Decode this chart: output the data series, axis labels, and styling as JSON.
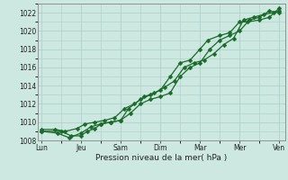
{
  "xlabel": "Pression niveau de la mer( hPa )",
  "bg_color": "#cce8e0",
  "grid_color": "#aacec6",
  "line_color": "#1a6b2a",
  "ylim": [
    1008,
    1023
  ],
  "yticks": [
    1008,
    1010,
    1012,
    1014,
    1016,
    1018,
    1020,
    1022
  ],
  "xtick_labels": [
    "Lun",
    "Jeu",
    "Sam",
    "Dim",
    "Mar",
    "Mer",
    "Ven"
  ],
  "xtick_positions": [
    0,
    1,
    2,
    3,
    4,
    5,
    6
  ],
  "xlim": [
    -0.1,
    6.15
  ],
  "series": [
    {
      "x": [
        0.0,
        0.5,
        0.75,
        1.0,
        1.15,
        1.35,
        1.5,
        1.75,
        2.0,
        2.2,
        2.5,
        2.75,
        3.0,
        3.25,
        3.5,
        3.75,
        4.0,
        4.2,
        4.5,
        4.75,
        5.0,
        5.2,
        5.5,
        5.75,
        6.0
      ],
      "y": [
        1009.0,
        1009.0,
        1008.5,
        1008.5,
        1009.0,
        1009.3,
        1009.8,
        1010.0,
        1010.2,
        1011.5,
        1012.5,
        1013.0,
        1013.5,
        1015.0,
        1016.5,
        1016.8,
        1018.0,
        1019.0,
        1019.5,
        1019.8,
        1021.0,
        1021.0,
        1021.2,
        1021.5,
        1022.5
      ]
    },
    {
      "x": [
        0.0,
        0.35,
        0.6,
        0.9,
        1.1,
        1.35,
        1.6,
        1.85,
        2.1,
        2.35,
        2.6,
        2.85,
        3.1,
        3.35,
        3.6,
        3.85,
        4.1,
        4.35,
        4.6,
        4.85,
        5.1,
        5.35,
        5.6,
        5.85,
        6.0
      ],
      "y": [
        1009.2,
        1009.2,
        1009.0,
        1009.3,
        1009.8,
        1010.0,
        1010.2,
        1010.5,
        1011.5,
        1012.0,
        1012.8,
        1013.2,
        1013.8,
        1014.5,
        1016.0,
        1016.5,
        1016.8,
        1017.5,
        1018.5,
        1019.2,
        1021.2,
        1021.5,
        1021.8,
        1022.0,
        1022.2
      ]
    },
    {
      "x": [
        0.0,
        0.4,
        0.7,
        1.0,
        1.25,
        1.5,
        1.75,
        2.0,
        2.25,
        2.5,
        2.75,
        3.0,
        3.25,
        3.5,
        3.75,
        4.0,
        4.25,
        4.5,
        4.75,
        5.0,
        5.25,
        5.5,
        5.75,
        6.0
      ],
      "y": [
        1009.0,
        1008.8,
        1008.3,
        1008.8,
        1009.5,
        1009.8,
        1010.0,
        1010.2,
        1011.0,
        1012.0,
        1012.5,
        1012.8,
        1013.2,
        1015.0,
        1016.0,
        1016.5,
        1018.0,
        1019.0,
        1019.5,
        1020.0,
        1021.2,
        1021.5,
        1022.2,
        1022.0
      ]
    }
  ],
  "markersize": 2.5,
  "linewidth": 0.9,
  "tick_fontsize": 5.5,
  "xlabel_fontsize": 6.5
}
